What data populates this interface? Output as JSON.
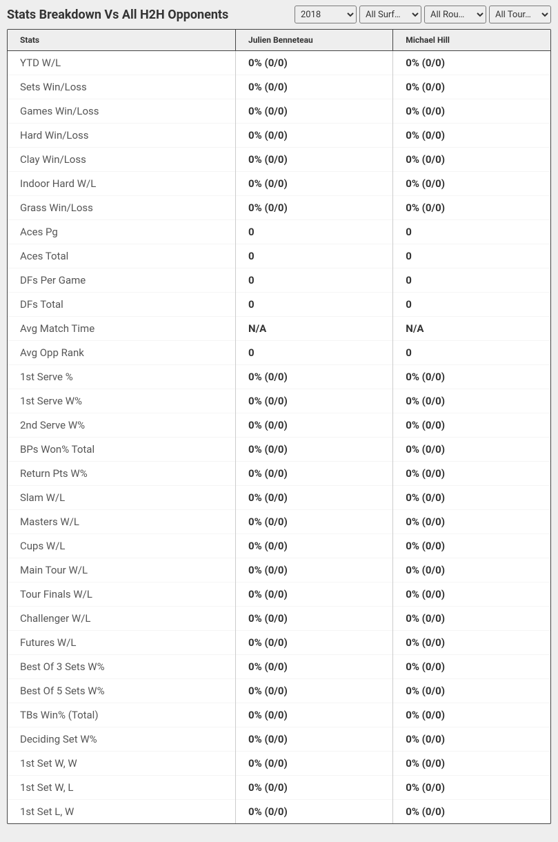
{
  "header": {
    "title": "Stats Breakdown Vs All H2H Opponents"
  },
  "filters": {
    "year": "2018",
    "surface": "All Surf…",
    "round": "All Rou…",
    "tournament": "All Tour…"
  },
  "table": {
    "columns": [
      "Stats",
      "Julien Benneteau",
      "Michael Hill"
    ],
    "rows": [
      [
        "YTD W/L",
        "0% (0/0)",
        "0% (0/0)"
      ],
      [
        "Sets Win/Loss",
        "0% (0/0)",
        "0% (0/0)"
      ],
      [
        "Games Win/Loss",
        "0% (0/0)",
        "0% (0/0)"
      ],
      [
        "Hard Win/Loss",
        "0% (0/0)",
        "0% (0/0)"
      ],
      [
        "Clay Win/Loss",
        "0% (0/0)",
        "0% (0/0)"
      ],
      [
        "Indoor Hard W/L",
        "0% (0/0)",
        "0% (0/0)"
      ],
      [
        "Grass Win/Loss",
        "0% (0/0)",
        "0% (0/0)"
      ],
      [
        "Aces Pg",
        "0",
        "0"
      ],
      [
        "Aces Total",
        "0",
        "0"
      ],
      [
        "DFs Per Game",
        "0",
        "0"
      ],
      [
        "DFs Total",
        "0",
        "0"
      ],
      [
        "Avg Match Time",
        "N/A",
        "N/A"
      ],
      [
        "Avg Opp Rank",
        "0",
        "0"
      ],
      [
        "1st Serve %",
        "0% (0/0)",
        "0% (0/0)"
      ],
      [
        "1st Serve W%",
        "0% (0/0)",
        "0% (0/0)"
      ],
      [
        "2nd Serve W%",
        "0% (0/0)",
        "0% (0/0)"
      ],
      [
        "BPs Won% Total",
        "0% (0/0)",
        "0% (0/0)"
      ],
      [
        "Return Pts W%",
        "0% (0/0)",
        "0% (0/0)"
      ],
      [
        "Slam W/L",
        "0% (0/0)",
        "0% (0/0)"
      ],
      [
        "Masters W/L",
        "0% (0/0)",
        "0% (0/0)"
      ],
      [
        "Cups W/L",
        "0% (0/0)",
        "0% (0/0)"
      ],
      [
        "Main Tour W/L",
        "0% (0/0)",
        "0% (0/0)"
      ],
      [
        "Tour Finals W/L",
        "0% (0/0)",
        "0% (0/0)"
      ],
      [
        "Challenger W/L",
        "0% (0/0)",
        "0% (0/0)"
      ],
      [
        "Futures W/L",
        "0% (0/0)",
        "0% (0/0)"
      ],
      [
        "Best Of 3 Sets W%",
        "0% (0/0)",
        "0% (0/0)"
      ],
      [
        "Best Of 5 Sets W%",
        "0% (0/0)",
        "0% (0/0)"
      ],
      [
        "TBs Win% (Total)",
        "0% (0/0)",
        "0% (0/0)"
      ],
      [
        "Deciding Set W%",
        "0% (0/0)",
        "0% (0/0)"
      ],
      [
        "1st Set W, W",
        "0% (0/0)",
        "0% (0/0)"
      ],
      [
        "1st Set W, L",
        "0% (0/0)",
        "0% (0/0)"
      ],
      [
        "1st Set L, W",
        "0% (0/0)",
        "0% (0/0)"
      ]
    ]
  },
  "styles": {
    "page_background": "#eeeeee",
    "table_background": "#ffffff",
    "border_color": "#444444",
    "row_divider": "#f5f5f5",
    "text_color": "#333333",
    "stat_label_color": "#555555",
    "header_fontsize": 18,
    "thead_fontsize": 12,
    "cell_fontsize": 15
  }
}
